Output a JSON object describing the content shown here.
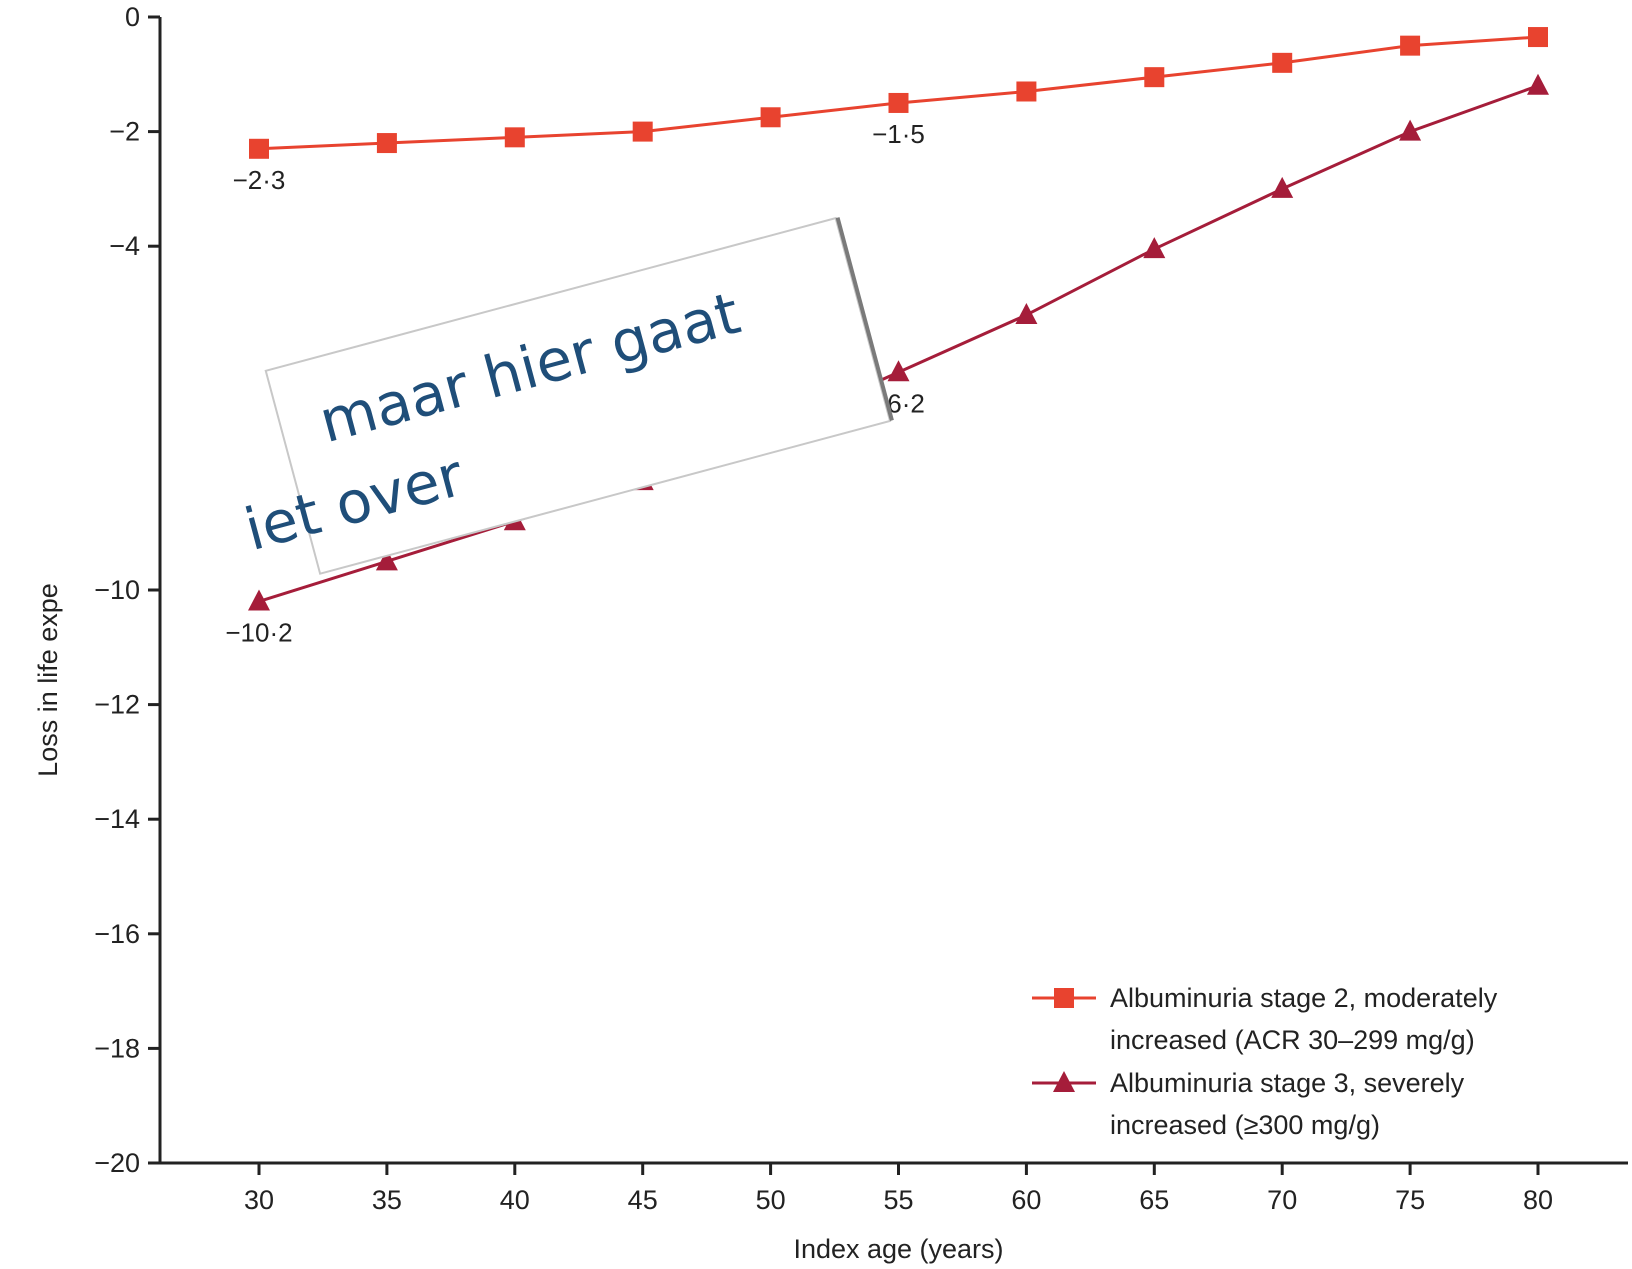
{
  "chart_data": {
    "type": "line",
    "xlabel": "Index age (years)",
    "ylabel": "Loss in life expe",
    "xlim": [
      30,
      80
    ],
    "ylim": [
      -20,
      0
    ],
    "x_ticks": [
      "30",
      "35",
      "40",
      "45",
      "50",
      "55",
      "60",
      "65",
      "70",
      "75",
      "80"
    ],
    "y_ticks": [
      "0",
      "−2",
      "−4",
      "−10",
      "−12",
      "−14",
      "−16",
      "−18",
      "−20"
    ],
    "x": [
      30,
      35,
      40,
      45,
      50,
      55,
      60,
      65,
      70,
      75,
      80
    ],
    "series": [
      {
        "name": "Albuminuria stage 2, moderately increased (ACR 30–299 mg/g)",
        "legend_lines": [
          "Albuminuria stage 2, moderately",
          "increased (ACR 30–299 mg/g)"
        ],
        "marker": "square",
        "color": "#e8432f",
        "values": [
          -2.3,
          -2.2,
          -2.1,
          -2.0,
          -1.75,
          -1.5,
          -1.3,
          -1.05,
          -0.8,
          -0.5,
          -0.35
        ]
      },
      {
        "name": "Albuminuria stage 3, severely increased (≥300 mg/g)",
        "legend_lines": [
          "Albuminuria stage 3, severely",
          "increased (≥300 mg/g)"
        ],
        "marker": "triangle",
        "color": "#a51d3a",
        "values": [
          -10.2,
          -9.5,
          -8.8,
          -8.1,
          -7.2,
          -6.2,
          -5.2,
          -4.05,
          -3.0,
          -2.0,
          -1.2
        ]
      }
    ],
    "data_labels": [
      {
        "series": 0,
        "x": 30,
        "text": "−2·3"
      },
      {
        "series": 0,
        "x": 55,
        "text": "−1·5"
      },
      {
        "series": 1,
        "x": 55,
        "text": "−6·2"
      },
      {
        "series": 1,
        "x": 30,
        "text": "−10·2"
      }
    ],
    "legend_position": "bottom-right",
    "grid": false
  },
  "callout": {
    "line1": "maar hier gaat",
    "line2": "iet over"
  }
}
